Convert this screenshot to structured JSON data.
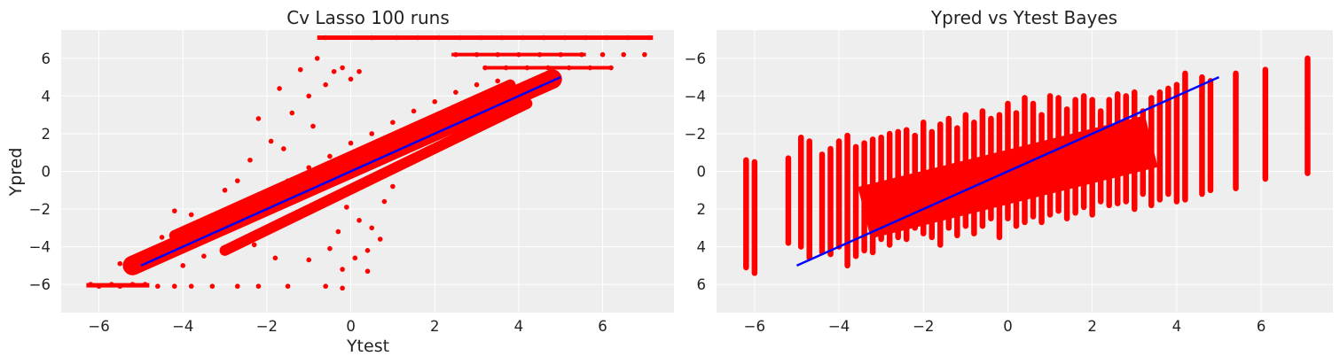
{
  "chart_data": [
    {
      "type": "scatter",
      "title": "Cv Lasso 100 runs",
      "xlabel": "Ytest",
      "ylabel": "Ypred",
      "xlim": [
        -6.9,
        7.7
      ],
      "ylim": [
        -7.5,
        7.5
      ],
      "xticks": [
        -6,
        -4,
        -2,
        0,
        2,
        4,
        6
      ],
      "yticks": [
        -6,
        -4,
        -2,
        0,
        2,
        4,
        6
      ],
      "tick_labels_x": [
        "−6",
        "−4",
        "−2",
        "0",
        "2",
        "4",
        "6"
      ],
      "tick_labels_y": [
        "−6",
        "−4",
        "−2",
        "0",
        "2",
        "4",
        "6"
      ],
      "grid": true,
      "series": [
        {
          "kind": "points",
          "color": "#ff0000",
          "points": [
            [
              -6.2,
              -6.0
            ],
            [
              -6.0,
              -6.1
            ],
            [
              -5.7,
              -6.0
            ],
            [
              -5.5,
              -6.1
            ],
            [
              -5.2,
              -6.0
            ],
            [
              -4.9,
              -6.0
            ],
            [
              -4.6,
              -6.1
            ],
            [
              -4.2,
              -6.1
            ],
            [
              -3.8,
              -6.1
            ],
            [
              -3.3,
              -6.1
            ],
            [
              -2.7,
              -6.1
            ],
            [
              -2.2,
              -6.1
            ],
            [
              -1.5,
              -6.1
            ],
            [
              -0.6,
              -6.1
            ],
            [
              -0.2,
              -6.2
            ],
            [
              0.4,
              -5.3
            ],
            [
              -5.5,
              -4.9
            ],
            [
              -5.3,
              -5.0
            ],
            [
              -5.0,
              -4.9
            ],
            [
              -4.8,
              -4.8
            ],
            [
              -4.5,
              -4.5
            ],
            [
              -4.2,
              -4.4
            ],
            [
              -4.0,
              -3.8
            ],
            [
              -3.7,
              -3.7
            ],
            [
              -3.4,
              -3.6
            ],
            [
              -3.0,
              -3.1
            ],
            [
              -2.7,
              -2.9
            ],
            [
              -2.4,
              -2.6
            ],
            [
              -2.1,
              -2.3
            ],
            [
              -1.8,
              -2.0
            ],
            [
              -1.5,
              -1.7
            ],
            [
              -1.2,
              -1.3
            ],
            [
              -0.9,
              -1.0
            ],
            [
              -0.6,
              -0.7
            ],
            [
              -0.3,
              -0.3
            ],
            [
              0.0,
              0.0
            ],
            [
              0.3,
              0.3
            ],
            [
              0.6,
              0.7
            ],
            [
              0.9,
              1.0
            ],
            [
              1.2,
              1.3
            ],
            [
              1.5,
              1.7
            ],
            [
              1.8,
              2.0
            ],
            [
              2.1,
              2.3
            ],
            [
              2.4,
              2.6
            ],
            [
              2.7,
              3.0
            ],
            [
              3.0,
              3.3
            ],
            [
              3.3,
              3.6
            ],
            [
              3.6,
              4.0
            ],
            [
              3.9,
              4.3
            ],
            [
              4.2,
              4.6
            ],
            [
              4.5,
              4.8
            ],
            [
              4.8,
              4.9
            ],
            [
              -4.0,
              -5.0
            ],
            [
              -3.5,
              -4.5
            ],
            [
              -3.0,
              -4.2
            ],
            [
              -2.5,
              -3.5
            ],
            [
              -2.0,
              -3.1
            ],
            [
              -1.5,
              -2.6
            ],
            [
              -1.0,
              -2.2
            ],
            [
              -0.5,
              -1.5
            ],
            [
              0.0,
              -1.0
            ],
            [
              0.5,
              -0.5
            ],
            [
              1.0,
              0.2
            ],
            [
              1.5,
              0.8
            ],
            [
              2.0,
              1.2
            ],
            [
              2.5,
              1.8
            ],
            [
              3.0,
              2.5
            ],
            [
              3.5,
              3.2
            ],
            [
              4.0,
              3.8
            ],
            [
              -4.5,
              -3.5
            ],
            [
              -4.0,
              -3.2
            ],
            [
              -3.5,
              -2.8
            ],
            [
              -3.0,
              -2.2
            ],
            [
              -2.5,
              -1.6
            ],
            [
              -2.0,
              -1.1
            ],
            [
              -1.5,
              -0.5
            ],
            [
              -1.0,
              0.2
            ],
            [
              -0.5,
              0.8
            ],
            [
              0.0,
              1.5
            ],
            [
              0.5,
              2.0
            ],
            [
              1.0,
              2.6
            ],
            [
              1.5,
              3.2
            ],
            [
              2.0,
              3.7
            ],
            [
              2.5,
              4.2
            ],
            [
              3.0,
              4.6
            ],
            [
              3.5,
              4.8
            ],
            [
              -2.2,
              2.8
            ],
            [
              -1.9,
              1.6
            ],
            [
              -1.7,
              4.4
            ],
            [
              -1.4,
              3.1
            ],
            [
              -1.2,
              5.4
            ],
            [
              -1.0,
              4.0
            ],
            [
              -0.8,
              6.0
            ],
            [
              -0.6,
              4.6
            ],
            [
              -0.4,
              5.3
            ],
            [
              -0.2,
              5.5
            ],
            [
              0.0,
              4.9
            ],
            [
              0.2,
              5.3
            ],
            [
              -0.9,
              2.4
            ],
            [
              -1.6,
              1.2
            ],
            [
              -2.4,
              0.6
            ],
            [
              -2.7,
              -0.5
            ],
            [
              -3.0,
              -1.0
            ],
            [
              -0.1,
              -1.9
            ],
            [
              0.2,
              -2.6
            ],
            [
              0.5,
              -3.0
            ],
            [
              0.7,
              -3.6
            ],
            [
              -0.3,
              -3.2
            ],
            [
              -0.5,
              -4.1
            ],
            [
              -0.2,
              -5.2
            ],
            [
              0.1,
              -4.6
            ],
            [
              0.4,
              -4.2
            ],
            [
              -1.0,
              -4.7
            ],
            [
              -1.8,
              -4.6
            ],
            [
              -2.3,
              -3.9
            ],
            [
              -3.8,
              -2.3
            ],
            [
              -4.2,
              -2.1
            ],
            [
              0.8,
              -1.6
            ],
            [
              1.0,
              -0.8
            ],
            [
              -0.6,
              7.1
            ],
            [
              0.5,
              7.1
            ],
            [
              1.1,
              7.1
            ],
            [
              1.6,
              7.1
            ],
            [
              2.1,
              7.1
            ],
            [
              2.6,
              7.1
            ],
            [
              3.1,
              7.1
            ],
            [
              3.6,
              7.1
            ],
            [
              4.1,
              7.1
            ],
            [
              4.6,
              7.1
            ],
            [
              5.1,
              7.1
            ],
            [
              5.6,
              7.1
            ],
            [
              6.1,
              7.1
            ],
            [
              6.6,
              7.1
            ],
            [
              7.1,
              7.1
            ],
            [
              2.5,
              6.2
            ],
            [
              3.0,
              6.2
            ],
            [
              3.5,
              6.2
            ],
            [
              4.0,
              6.2
            ],
            [
              4.5,
              6.2
            ],
            [
              5.0,
              6.2
            ],
            [
              5.5,
              6.2
            ],
            [
              6.0,
              6.2
            ],
            [
              6.5,
              6.2
            ],
            [
              7.0,
              6.2
            ],
            [
              3.2,
              5.5
            ],
            [
              3.7,
              5.5
            ],
            [
              4.2,
              5.5
            ],
            [
              4.7,
              5.5
            ],
            [
              5.2,
              5.5
            ],
            [
              5.7,
              5.5
            ],
            [
              6.2,
              5.5
            ]
          ]
        },
        {
          "kind": "line",
          "color": "#0000ff",
          "x": [
            -5,
            5
          ],
          "y": [
            -5,
            5
          ]
        }
      ]
    },
    {
      "type": "scatter",
      "title": "Ypred vs Ytest Bayes",
      "xlabel": "",
      "ylabel": "",
      "xlim": [
        -6.9,
        7.7
      ],
      "ylim": [
        -7.5,
        7.5
      ],
      "xticks": [
        -6,
        -4,
        -2,
        0,
        2,
        4,
        6
      ],
      "yticks": [
        -6,
        -4,
        -2,
        0,
        2,
        4,
        6
      ],
      "tick_labels_x": [
        "−6",
        "−4",
        "−2",
        "0",
        "2",
        "4",
        "6"
      ],
      "tick_labels_y": [
        "6",
        "4",
        "2",
        "0",
        "−2",
        "−4",
        "−6"
      ],
      "grid": true,
      "series": [
        {
          "kind": "columns",
          "color": "#ff0000",
          "columns": [
            [
              -6.2,
              -5.1,
              0.6
            ],
            [
              -6.0,
              -5.4,
              0.5
            ],
            [
              -5.2,
              -3.8,
              0.7
            ],
            [
              -4.9,
              -4.0,
              1.8
            ],
            [
              -4.7,
              -4.6,
              1.6
            ],
            [
              -4.4,
              -4.3,
              0.9
            ],
            [
              -4.2,
              -4.4,
              1.2
            ],
            [
              -4.0,
              -4.0,
              1.6
            ],
            [
              -3.8,
              -5.0,
              1.9
            ],
            [
              -3.6,
              -4.5,
              1.3
            ],
            [
              -3.4,
              -4.2,
              1.5
            ],
            [
              -3.2,
              -4.3,
              1.7
            ],
            [
              -3.0,
              -3.6,
              1.8
            ],
            [
              -2.8,
              -3.9,
              2.0
            ],
            [
              -2.6,
              -3.5,
              2.1
            ],
            [
              -2.4,
              -3.6,
              2.2
            ],
            [
              -2.2,
              -3.0,
              1.9
            ],
            [
              -2.0,
              -3.3,
              2.6
            ],
            [
              -1.8,
              -3.5,
              2.1
            ],
            [
              -1.6,
              -3.9,
              2.5
            ],
            [
              -1.4,
              -3.0,
              2.8
            ],
            [
              -1.2,
              -3.4,
              2.3
            ],
            [
              -1.0,
              -2.9,
              3.0
            ],
            [
              -0.8,
              -3.3,
              2.6
            ],
            [
              -0.6,
              -2.9,
              3.2
            ],
            [
              -0.4,
              -2.5,
              2.8
            ],
            [
              -0.2,
              -3.5,
              3.0
            ],
            [
              0.0,
              -2.5,
              3.6
            ],
            [
              0.2,
              -2.9,
              3.1
            ],
            [
              0.4,
              -2.7,
              3.9
            ],
            [
              0.6,
              -2.4,
              3.6
            ],
            [
              0.8,
              -2.7,
              3.0
            ],
            [
              1.0,
              -2.3,
              4.0
            ],
            [
              1.2,
              -2.1,
              3.9
            ],
            [
              1.4,
              -2.5,
              3.3
            ],
            [
              1.6,
              -2.2,
              3.8
            ],
            [
              1.8,
              -1.9,
              4.0
            ],
            [
              2.0,
              -2.3,
              3.8
            ],
            [
              2.2,
              -1.6,
              3.2
            ],
            [
              2.4,
              -1.8,
              3.8
            ],
            [
              2.6,
              -1.7,
              4.1
            ],
            [
              2.8,
              -1.6,
              4.0
            ],
            [
              3.0,
              -2.0,
              4.2
            ],
            [
              3.2,
              -1.2,
              3.2
            ],
            [
              3.4,
              -1.8,
              3.9
            ],
            [
              3.6,
              -1.5,
              4.2
            ],
            [
              3.8,
              -1.2,
              4.4
            ],
            [
              4.0,
              -1.6,
              4.6
            ],
            [
              4.2,
              -1.5,
              5.2
            ],
            [
              4.6,
              -1.2,
              5.0
            ],
            [
              4.8,
              -1.0,
              4.8
            ],
            [
              5.4,
              -0.9,
              5.2
            ],
            [
              6.1,
              -0.4,
              5.4
            ],
            [
              7.1,
              -0.1,
              6.0
            ]
          ]
        },
        {
          "kind": "line",
          "color": "#0000ff",
          "x": [
            -5,
            5
          ],
          "y": [
            -5,
            5
          ]
        }
      ]
    }
  ]
}
